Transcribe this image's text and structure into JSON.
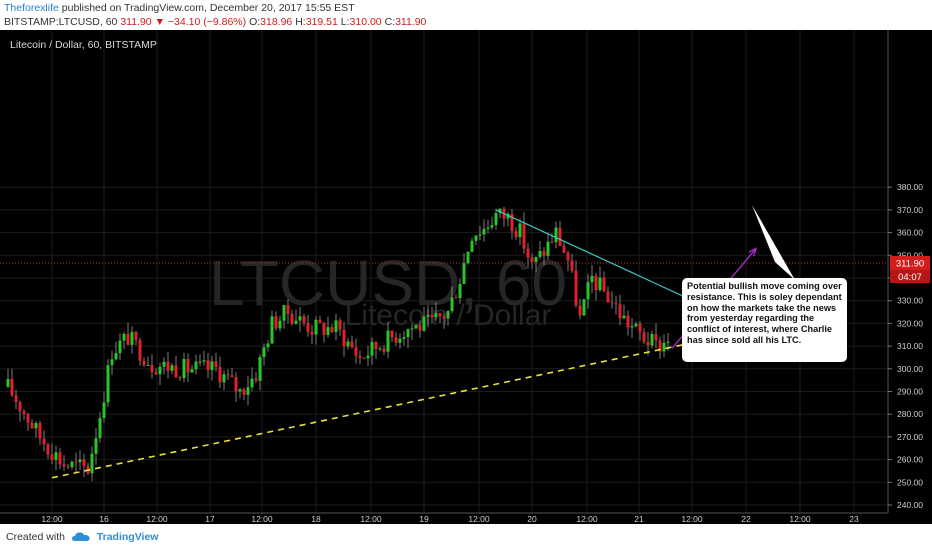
{
  "header": {
    "author": "Theforexlife",
    "published_text": "published on TradingView.com, December 20, 2017 15:55 EST",
    "symbol_interval": "BITSTAMP:LTCUSD, 60",
    "last_value": "311.90",
    "change_arrow": "▼",
    "change": "−34.10 (−9.86%)",
    "o_label": "O:",
    "o_value": "318.96",
    "h_label": "H:",
    "h_value": "319.51",
    "l_label": "L:",
    "l_value": "310.00",
    "c_label": "C:",
    "c_value": "311.90"
  },
  "footer": {
    "created_with": "Created with",
    "brand": "TradingView"
  },
  "colors": {
    "background": "#000000",
    "up": "#29c429",
    "down": "#e0202b",
    "wick": "#7d7d7d",
    "grid": "#1c1c1c",
    "support": "#e6e23a",
    "resistance": "#3bc9c1",
    "projection": "#b22bd4",
    "price_marker": "#d31c1c"
  },
  "chart_data": {
    "type": "candlestick",
    "title": "Litecoin / Dollar, 60, BITSTAMP",
    "watermark_symbol": "LTCUSD, 60",
    "watermark_name": "Litecoin / Dollar",
    "ylim": [
      240,
      380
    ],
    "y_ticks": [
      "240.00",
      "250.00",
      "260.00",
      "270.00",
      "280.00",
      "290.00",
      "300.00",
      "310.00",
      "320.00",
      "330.00",
      "340.00",
      "350.00",
      "360.00",
      "370.00",
      "380.00"
    ],
    "x_ticks": [
      "12:00",
      "16",
      "12:00",
      "17",
      "12:00",
      "18",
      "12:00",
      "19",
      "12:00",
      "20",
      "12:00",
      "21",
      "12:00",
      "22",
      "12:00",
      "23"
    ],
    "last_price_label": "311.90",
    "countdown_label": "04:07",
    "annotation": "Potential bullish move coming over resistance. This is soley dependant on how the markets take the news from yesterday regarding the conflict of interest, where Charlie has since sold all his LTC.",
    "anchors": [
      {
        "t": 0,
        "v": 292
      },
      {
        "t": 8,
        "v": 270
      },
      {
        "t": 14,
        "v": 258
      },
      {
        "t": 20,
        "v": 256
      },
      {
        "t": 23,
        "v": 280
      },
      {
        "t": 26,
        "v": 308
      },
      {
        "t": 30,
        "v": 314
      },
      {
        "t": 36,
        "v": 302
      },
      {
        "t": 44,
        "v": 300
      },
      {
        "t": 52,
        "v": 300
      },
      {
        "t": 58,
        "v": 290
      },
      {
        "t": 62,
        "v": 298
      },
      {
        "t": 66,
        "v": 320
      },
      {
        "t": 70,
        "v": 325
      },
      {
        "t": 76,
        "v": 318
      },
      {
        "t": 82,
        "v": 318
      },
      {
        "t": 88,
        "v": 305
      },
      {
        "t": 94,
        "v": 312
      },
      {
        "t": 100,
        "v": 318
      },
      {
        "t": 106,
        "v": 320
      },
      {
        "t": 110,
        "v": 325
      },
      {
        "t": 113,
        "v": 340
      },
      {
        "t": 116,
        "v": 360
      },
      {
        "t": 119,
        "v": 362
      },
      {
        "t": 122,
        "v": 368
      },
      {
        "t": 125,
        "v": 367
      },
      {
        "t": 128,
        "v": 360
      },
      {
        "t": 131,
        "v": 345
      },
      {
        "t": 134,
        "v": 352
      },
      {
        "t": 137,
        "v": 360
      },
      {
        "t": 140,
        "v": 348
      },
      {
        "t": 143,
        "v": 322
      },
      {
        "t": 146,
        "v": 340
      },
      {
        "t": 150,
        "v": 332
      },
      {
        "t": 154,
        "v": 322
      },
      {
        "t": 158,
        "v": 315
      },
      {
        "t": 162,
        "v": 310
      },
      {
        "t": 165,
        "v": 312
      }
    ],
    "support_line": [
      {
        "t": 11,
        "v": 252
      },
      {
        "t": 186,
        "v": 317
      }
    ],
    "resistance_line": [
      {
        "t": 122,
        "v": 370
      },
      {
        "t": 186,
        "v": 318
      }
    ],
    "projection_line": [
      {
        "t": 166,
        "v": 309
      },
      {
        "t": 187,
        "v": 353
      }
    ]
  }
}
